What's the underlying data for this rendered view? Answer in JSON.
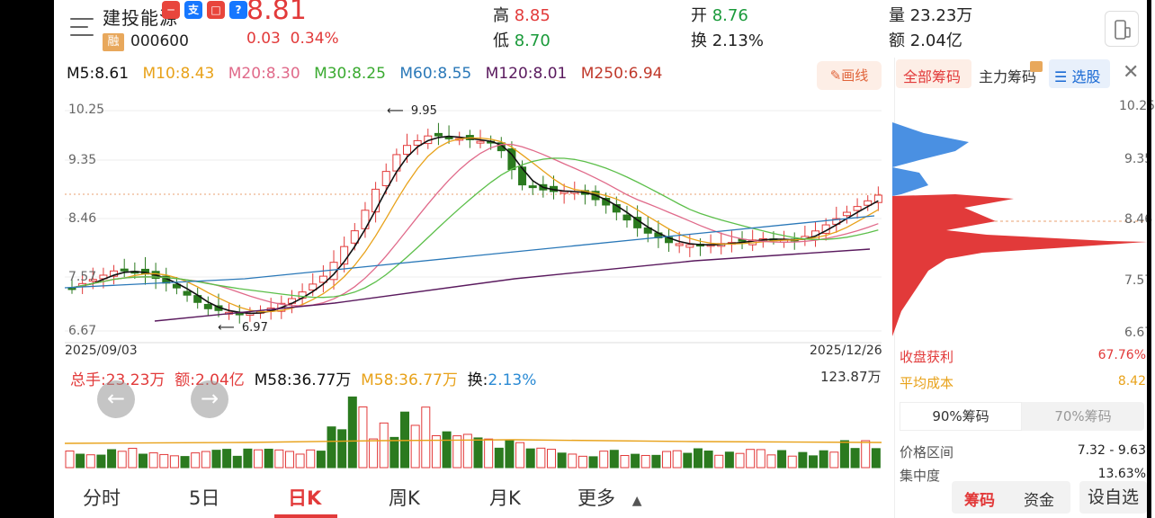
{
  "header": {
    "stock_name": "建投能源",
    "margin_badge": "融",
    "stock_code": "000600",
    "price": "8.81",
    "change": "0.03",
    "change_pct": "0.34%",
    "high_label": "高",
    "high": "8.85",
    "low_label": "低",
    "low": "8.70",
    "open_label": "开",
    "open": "8.76",
    "turnover_label": "换",
    "turnover": "2.13%",
    "volume_label": "量",
    "volume": "23.23万",
    "amount_label": "额",
    "amount": "2.04亿"
  },
  "ma_legend": {
    "m5": "M5:8.61",
    "m10": "M10:8.43",
    "m20": "M20:8.30",
    "m30": "M30:8.25",
    "m60": "M60:8.55",
    "m120": "M120:8.01",
    "m250": "M250:6.94"
  },
  "draw_button": "画线",
  "colors": {
    "up": "#e23a3a",
    "down": "#2b7a1f",
    "m5": "#111111",
    "m10": "#e8a21a",
    "m20": "#e06a8a",
    "m30": "#5cbf4a",
    "m60": "#2a78b8",
    "m120": "#5a1a5e"
  },
  "kchart": {
    "y_labels": [
      "10.25",
      "9.35",
      "8.46",
      "7.57",
      "6.67"
    ],
    "max_note": "9.95",
    "min_note": "6.97",
    "date_start": "2025/09/03",
    "date_end": "2025/12/26"
  },
  "volume": {
    "total_label": "总手:23.23万",
    "amount_label": "额:2.04亿",
    "m58a": "M58:36.77万",
    "m58b": "M58:36.77万",
    "turn_label": "换:",
    "turn_value": "2.13%",
    "max_value": "123.87万"
  },
  "tabs": [
    "分时",
    "5日",
    "日K",
    "周K",
    "月K",
    "更多"
  ],
  "right_panel": {
    "tab_all": "全部筹码",
    "tab_main": "主力筹码",
    "tab_select": "选股",
    "y_labels": [
      "10.25",
      "9.35",
      "8.46",
      "7.57",
      "6.67"
    ],
    "profit_label": "收盘获利",
    "profit_value": "67.76%",
    "avg_label": "平均成本",
    "avg_value": "8.42",
    "seg_90": "90%筹码",
    "seg_70": "70%筹码",
    "range_label": "价格区间",
    "range_value": "7.32 - 9.63",
    "conc_label": "集中度",
    "conc_value": "13.63%"
  },
  "bottom": {
    "chips": "筹码",
    "funds": "资金",
    "settings": "设自选"
  }
}
